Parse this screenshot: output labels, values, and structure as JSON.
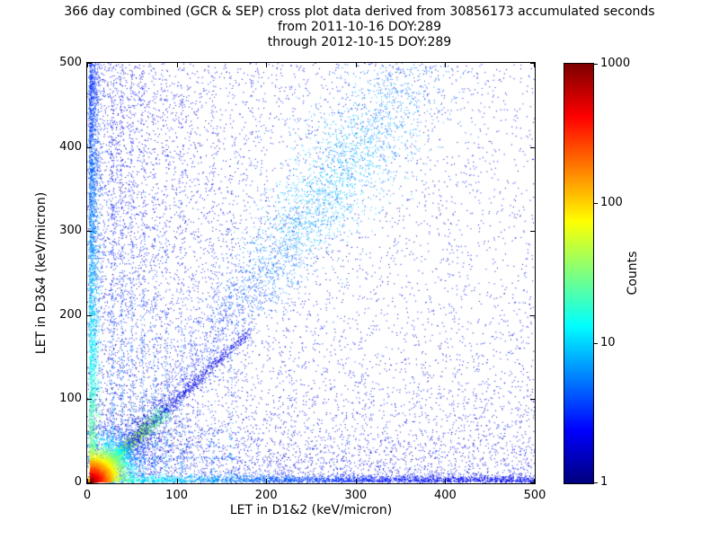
{
  "chart_data": {
    "type": "heatmap",
    "title": "366 day combined (GCR & SEP) cross plot data derived from 30856173 accumulated seconds",
    "subtitle1": "from 2011-10-16 DOY:289",
    "subtitle2": "through 2012-10-15 DOY:289",
    "xlabel": "LET in D1&2 (keV/micron)",
    "ylabel": "LET in D3&4 (keV/micron)",
    "xlim": [
      0,
      500
    ],
    "ylim": [
      0,
      500
    ],
    "xticks": [
      0,
      100,
      200,
      300,
      400,
      500
    ],
    "yticks": [
      0,
      100,
      200,
      300,
      400,
      500
    ],
    "grid": false,
    "colormap": "jet",
    "color_scale": "log",
    "colorbar": {
      "label": "Counts",
      "min": 1,
      "max": 1000,
      "ticks": [
        1,
        10,
        100,
        1000
      ]
    },
    "seed": 1234567,
    "features": [
      {
        "kind": "background",
        "n": 3600
      },
      {
        "kind": "background-left",
        "n": 3200,
        "xscale": 90
      },
      {
        "kind": "background-bottom",
        "n": 2600,
        "yscale": 55
      },
      {
        "kind": "vertical-streaks",
        "xs": [
          28,
          38,
          50,
          62,
          75,
          88,
          105,
          140,
          160
        ],
        "n": [
          280,
          250,
          230,
          200,
          170,
          140,
          110,
          95,
          80
        ],
        "ymax": 500
      },
      {
        "kind": "horizontal-streaks",
        "ys": [
          30,
          45,
          60
        ],
        "n": [
          150,
          120,
          100
        ],
        "xmax": 170
      },
      {
        "kind": "diagonal-faint",
        "s": [
          50,
          180
        ],
        "n": 700
      },
      {
        "kind": "diagonal-band",
        "slope": 1.4,
        "intercept": -25,
        "s": [
          40,
          380
        ],
        "blob": [
          210,
          340
        ],
        "n": 3400
      },
      {
        "kind": "edge-vertical",
        "x0": 2,
        "sigma": 5,
        "n": 2800,
        "ymax": 500
      },
      {
        "kind": "edge-horizontal",
        "y0": 2,
        "sigma": 4,
        "n": 2400,
        "xmax": 500
      },
      {
        "kind": "core-diagonal",
        "smax": 85,
        "n": 1600
      },
      {
        "kind": "core",
        "cx": 3,
        "cy": 3,
        "scale": 17,
        "n": 7500,
        "peak_counts": 1000
      }
    ]
  }
}
